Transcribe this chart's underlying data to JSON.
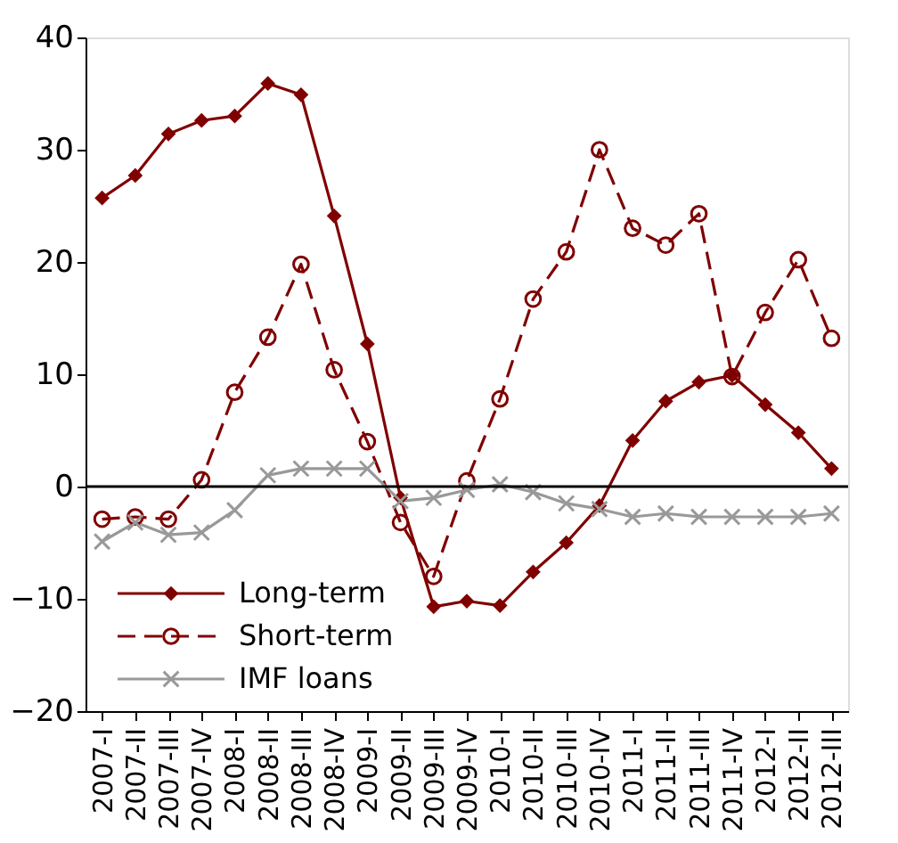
{
  "chart_data": {
    "type": "line",
    "categories": [
      "2007-I",
      "2007-II",
      "2007-III",
      "2007-IV",
      "2008-I",
      "2008-II",
      "2008-III",
      "2008-IV",
      "2009-I",
      "2009-II",
      "2009-III",
      "2009-IV",
      "2010-I",
      "2010-II",
      "2010-III",
      "2010-IV",
      "2011-I",
      "2011-II",
      "2011-III",
      "2011-IV",
      "2012-I",
      "2012-II",
      "2012-III"
    ],
    "series": [
      {
        "name": "Long-term",
        "color": "#800000",
        "marker": "diamond",
        "line_style": "solid",
        "values": [
          25.7,
          27.7,
          31.4,
          32.6,
          33,
          35.9,
          34.9,
          24.1,
          12.7,
          -1,
          -10.7,
          -10.2,
          -10.6,
          -7.6,
          -5,
          -1.7,
          4.1,
          7.6,
          9.3,
          9.9,
          7.3,
          4.8,
          1.6
        ]
      },
      {
        "name": "Short-term",
        "color": "#800000",
        "marker": "circle",
        "line_style": "dashed",
        "values": [
          -2.9,
          -2.7,
          -2.9,
          0.6,
          8.4,
          13.3,
          19.8,
          10.4,
          4,
          -3.2,
          -8,
          0.5,
          7.8,
          16.7,
          20.9,
          30,
          23,
          21.5,
          24.3,
          9.8,
          15.5,
          20.2,
          13.2
        ]
      },
      {
        "name": "IMF loans",
        "color": "#999999",
        "marker": "cross",
        "line_style": "solid",
        "values": [
          -4.9,
          -3.2,
          -4.3,
          -4.1,
          -2.1,
          1,
          1.6,
          1.6,
          1.6,
          -1.3,
          -1,
          -0.3,
          0.2,
          -0.5,
          -1.5,
          -2,
          -2.7,
          -2.4,
          -2.7,
          -2.7,
          -2.7,
          -2.7,
          -2.4
        ]
      }
    ],
    "ylim": [
      -20,
      40
    ],
    "yticks": [
      -20,
      -10,
      0,
      10,
      20,
      30,
      40
    ],
    "ref_lines": [
      {
        "axis": "y",
        "value": 0,
        "color": "#000000"
      }
    ],
    "legend": "bottom left",
    "grid": false
  }
}
